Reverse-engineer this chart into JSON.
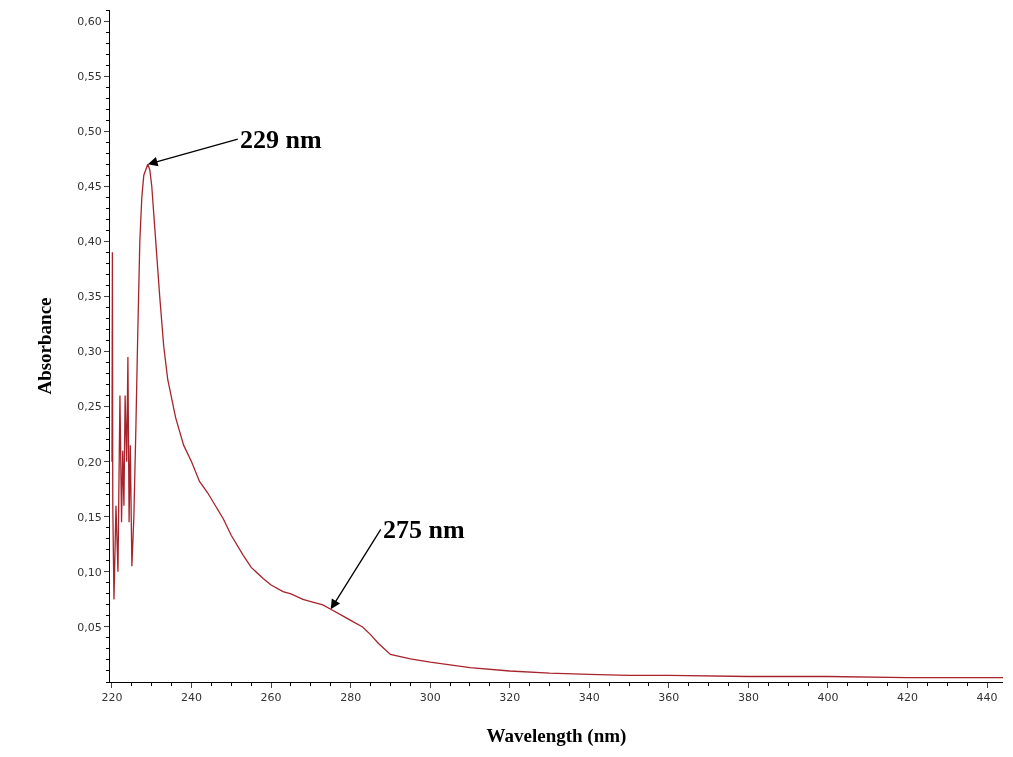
{
  "chart_data": {
    "type": "line",
    "xlabel": "Wavelength (nm)",
    "ylabel": "Absorbance",
    "x": [
      220,
      220.1,
      220.2,
      220.5,
      221,
      221.5,
      222,
      222.4,
      222.7,
      223,
      223.3,
      223.7,
      224,
      224.3,
      224.6,
      225,
      225.5,
      226,
      226.5,
      227,
      227.5,
      228,
      228.5,
      229,
      229.5,
      230,
      231,
      232,
      233,
      234,
      236,
      238,
      240,
      242,
      244,
      246,
      248,
      250,
      253,
      255,
      258,
      260,
      263,
      265,
      268,
      270,
      273,
      275,
      278,
      280,
      283,
      285,
      287,
      290,
      295,
      300,
      310,
      320,
      330,
      340,
      350,
      360,
      380,
      400,
      420,
      444
    ],
    "series": [
      {
        "color": "#a8242c",
        "values": [
          0.2,
          0.39,
          0.16,
          0.075,
          0.16,
          0.1,
          0.26,
          0.145,
          0.21,
          0.16,
          0.26,
          0.2,
          0.295,
          0.145,
          0.215,
          0.105,
          0.15,
          0.23,
          0.32,
          0.4,
          0.44,
          0.46,
          0.465,
          0.47,
          0.465,
          0.45,
          0.4,
          0.35,
          0.305,
          0.275,
          0.24,
          0.215,
          0.2,
          0.182,
          0.172,
          0.16,
          0.148,
          0.133,
          0.115,
          0.104,
          0.094,
          0.088,
          0.082,
          0.08,
          0.075,
          0.073,
          0.07,
          0.066,
          0.06,
          0.056,
          0.05,
          0.043,
          0.035,
          0.025,
          0.021,
          0.018,
          0.013,
          0.01,
          0.008,
          0.007,
          0.006,
          0.006,
          0.005,
          0.005,
          0.004,
          0.004
        ]
      }
    ],
    "xlim": [
      219.5,
      444
    ],
    "ylim": [
      0,
      0.61
    ],
    "xticks": [
      220,
      240,
      260,
      280,
      300,
      320,
      340,
      360,
      380,
      400,
      420,
      440
    ],
    "yticks": [
      {
        "value": 0.05,
        "label": "0,05"
      },
      {
        "value": 0.1,
        "label": "0,10"
      },
      {
        "value": 0.15,
        "label": "0,15"
      },
      {
        "value": 0.2,
        "label": "0,20"
      },
      {
        "value": 0.25,
        "label": "0,25"
      },
      {
        "value": 0.3,
        "label": "0,30"
      },
      {
        "value": 0.35,
        "label": "0,35"
      },
      {
        "value": 0.4,
        "label": "0,40"
      },
      {
        "value": 0.45,
        "label": "0,45"
      },
      {
        "value": 0.5,
        "label": "0,50"
      },
      {
        "value": 0.55,
        "label": "0,55"
      },
      {
        "value": 0.6,
        "label": "0,60"
      }
    ],
    "annotations": [
      {
        "text": "229 nm",
        "x": 229,
        "y": 0.47
      },
      {
        "text": "275 nm",
        "x": 275,
        "y": 0.066
      }
    ],
    "marker": "none",
    "line_style": "solid"
  }
}
